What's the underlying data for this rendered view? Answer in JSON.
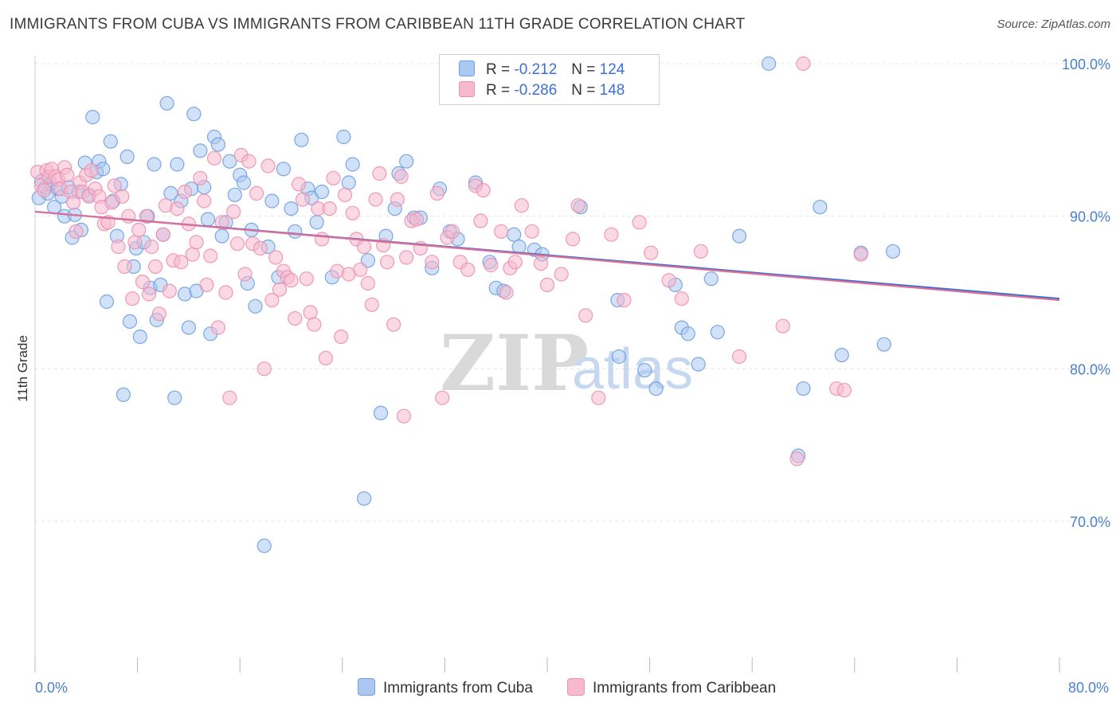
{
  "title": "IMMIGRANTS FROM CUBA VS IMMIGRANTS FROM CARIBBEAN 11TH GRADE CORRELATION CHART",
  "source": "Source: ZipAtlas.com",
  "watermark": {
    "zip": "ZIP",
    "atlas": "atlas"
  },
  "legend": {
    "rows": [
      {
        "r_label": "R =",
        "r_value": "-0.212",
        "n_label": "N =",
        "n_value": "124"
      },
      {
        "r_label": "R =",
        "r_value": "-0.286",
        "n_label": "N =",
        "n_value": "148"
      }
    ]
  },
  "chart_data": {
    "type": "scatter",
    "title": "IMMIGRANTS FROM CUBA VS IMMIGRANTS FROM CARIBBEAN 11TH GRADE CORRELATION CHART",
    "xlabel": "",
    "ylabel": "11th Grade",
    "xlim": [
      0,
      80
    ],
    "ylim": [
      61,
      102
    ],
    "x_tick_labels": [
      "0.0%",
      "80.0%"
    ],
    "y_ticks": [
      70,
      80,
      90,
      100
    ],
    "y_tick_labels": [
      "70.0%",
      "80.0%",
      "90.0%",
      "100.0%"
    ],
    "grid": true,
    "legend_position": "top-center",
    "colors": {
      "cuba_fill": "#aac8f2",
      "cuba_stroke": "#6f9ee0",
      "cuba_line": "#3a6fcf",
      "carib_fill": "#f6b9cd",
      "carib_stroke": "#ee8fae",
      "carib_line": "#e06f98"
    },
    "series": [
      {
        "name": "Immigrants from Cuba",
        "color": "#aac8f2",
        "trend": {
          "x": [
            0,
            80
          ],
          "y": [
            90.3,
            84.6
          ]
        },
        "points": [
          [
            0.3,
            91.2
          ],
          [
            0.5,
            92.3
          ],
          [
            0.8,
            91.9
          ],
          [
            1.0,
            91.5
          ],
          [
            1.2,
            92.1
          ],
          [
            1.5,
            90.6
          ],
          [
            1.8,
            91.8
          ],
          [
            2.1,
            91.3
          ],
          [
            2.3,
            90.0
          ],
          [
            2.6,
            91.9
          ],
          [
            2.9,
            88.6
          ],
          [
            3.1,
            90.1
          ],
          [
            3.4,
            91.6
          ],
          [
            3.6,
            89.1
          ],
          [
            3.9,
            93.5
          ],
          [
            4.2,
            91.4
          ],
          [
            4.5,
            96.5
          ],
          [
            4.8,
            92.9
          ],
          [
            5.0,
            93.6
          ],
          [
            5.3,
            93.1
          ],
          [
            5.6,
            84.4
          ],
          [
            5.9,
            94.9
          ],
          [
            6.1,
            91.0
          ],
          [
            6.4,
            88.7
          ],
          [
            6.7,
            92.1
          ],
          [
            6.9,
            78.3
          ],
          [
            7.2,
            93.9
          ],
          [
            7.4,
            83.1
          ],
          [
            7.7,
            86.7
          ],
          [
            7.9,
            87.9
          ],
          [
            8.2,
            82.1
          ],
          [
            8.5,
            88.3
          ],
          [
            8.8,
            90.0
          ],
          [
            9.0,
            85.3
          ],
          [
            9.3,
            93.4
          ],
          [
            9.5,
            83.2
          ],
          [
            9.8,
            85.5
          ],
          [
            10.0,
            88.8
          ],
          [
            10.3,
            97.4
          ],
          [
            10.6,
            91.5
          ],
          [
            10.9,
            78.1
          ],
          [
            11.1,
            93.4
          ],
          [
            11.4,
            91.0
          ],
          [
            11.7,
            84.9
          ],
          [
            12.0,
            82.7
          ],
          [
            12.2,
            91.8
          ],
          [
            12.4,
            96.7
          ],
          [
            12.6,
            85.1
          ],
          [
            12.9,
            94.3
          ],
          [
            13.2,
            91.9
          ],
          [
            13.5,
            89.8
          ],
          [
            13.7,
            82.3
          ],
          [
            14.0,
            95.2
          ],
          [
            14.3,
            94.7
          ],
          [
            14.6,
            88.7
          ],
          [
            14.9,
            89.6
          ],
          [
            15.2,
            93.6
          ],
          [
            15.6,
            91.4
          ],
          [
            16.0,
            92.7
          ],
          [
            16.3,
            92.2
          ],
          [
            16.6,
            85.6
          ],
          [
            16.9,
            89.1
          ],
          [
            17.2,
            84.1
          ],
          [
            17.9,
            68.4
          ],
          [
            18.2,
            88.0
          ],
          [
            18.5,
            91.0
          ],
          [
            19.0,
            86.0
          ],
          [
            19.4,
            93.1
          ],
          [
            20.0,
            90.5
          ],
          [
            20.3,
            89.0
          ],
          [
            20.8,
            95.0
          ],
          [
            21.3,
            91.8
          ],
          [
            21.6,
            91.2
          ],
          [
            22.0,
            89.6
          ],
          [
            22.4,
            91.6
          ],
          [
            23.2,
            86.0
          ],
          [
            24.1,
            95.2
          ],
          [
            24.5,
            92.2
          ],
          [
            24.8,
            93.4
          ],
          [
            25.7,
            71.5
          ],
          [
            26.0,
            87.1
          ],
          [
            27.0,
            77.1
          ],
          [
            27.4,
            88.7
          ],
          [
            28.1,
            90.5
          ],
          [
            28.4,
            92.8
          ],
          [
            29.0,
            93.6
          ],
          [
            29.6,
            89.9
          ],
          [
            30.1,
            89.9
          ],
          [
            31.0,
            86.6
          ],
          [
            31.6,
            91.8
          ],
          [
            32.4,
            89.0
          ],
          [
            33.0,
            88.5
          ],
          [
            34.4,
            92.2
          ],
          [
            35.5,
            87.0
          ],
          [
            36.0,
            85.3
          ],
          [
            36.6,
            85.1
          ],
          [
            37.4,
            88.8
          ],
          [
            37.8,
            88.0
          ],
          [
            39.0,
            87.8
          ],
          [
            39.6,
            87.5
          ],
          [
            42.6,
            90.6
          ],
          [
            45.5,
            84.5
          ],
          [
            45.6,
            80.8
          ],
          [
            47.6,
            79.9
          ],
          [
            48.5,
            78.7
          ],
          [
            50.0,
            85.5
          ],
          [
            50.5,
            82.7
          ],
          [
            51.0,
            82.3
          ],
          [
            51.8,
            80.3
          ],
          [
            52.8,
            85.9
          ],
          [
            53.3,
            82.4
          ],
          [
            55.0,
            88.7
          ],
          [
            57.3,
            100.0
          ],
          [
            59.6,
            74.3
          ],
          [
            60.0,
            78.7
          ],
          [
            61.3,
            90.6
          ],
          [
            63.0,
            80.9
          ],
          [
            64.5,
            87.6
          ],
          [
            66.3,
            81.6
          ],
          [
            67.0,
            87.7
          ]
        ]
      },
      {
        "name": "Immigrants from Caribbean",
        "color": "#f6b9cd",
        "trend": {
          "x": [
            0,
            80
          ],
          "y": [
            90.3,
            84.5
          ]
        },
        "points": [
          [
            0.2,
            92.9
          ],
          [
            0.5,
            92.0
          ],
          [
            0.7,
            91.7
          ],
          [
            0.9,
            93.0
          ],
          [
            1.1,
            92.6
          ],
          [
            1.3,
            93.1
          ],
          [
            1.6,
            92.6
          ],
          [
            1.8,
            92.4
          ],
          [
            2.0,
            91.8
          ],
          [
            2.3,
            93.2
          ],
          [
            2.5,
            92.7
          ],
          [
            2.8,
            91.6
          ],
          [
            3.0,
            90.9
          ],
          [
            3.2,
            89.0
          ],
          [
            3.5,
            92.2
          ],
          [
            3.7,
            91.6
          ],
          [
            4.0,
            92.7
          ],
          [
            4.2,
            91.3
          ],
          [
            4.4,
            93.0
          ],
          [
            4.7,
            91.8
          ],
          [
            5.0,
            91.3
          ],
          [
            5.2,
            90.6
          ],
          [
            5.4,
            89.5
          ],
          [
            5.7,
            89.6
          ],
          [
            6.0,
            90.9
          ],
          [
            6.2,
            92.0
          ],
          [
            6.5,
            88.0
          ],
          [
            6.8,
            91.3
          ],
          [
            7.0,
            86.7
          ],
          [
            7.3,
            90.0
          ],
          [
            7.6,
            84.6
          ],
          [
            7.8,
            88.3
          ],
          [
            8.1,
            89.1
          ],
          [
            8.4,
            85.7
          ],
          [
            8.7,
            90.0
          ],
          [
            8.9,
            84.9
          ],
          [
            9.1,
            88.0
          ],
          [
            9.4,
            86.7
          ],
          [
            9.7,
            83.6
          ],
          [
            10.0,
            88.8
          ],
          [
            10.2,
            90.7
          ],
          [
            10.5,
            85.1
          ],
          [
            10.8,
            87.1
          ],
          [
            11.1,
            90.5
          ],
          [
            11.4,
            87.0
          ],
          [
            11.7,
            91.6
          ],
          [
            12.0,
            89.5
          ],
          [
            12.3,
            87.5
          ],
          [
            12.6,
            88.3
          ],
          [
            12.9,
            92.5
          ],
          [
            13.2,
            91.0
          ],
          [
            13.4,
            85.5
          ],
          [
            13.7,
            87.4
          ],
          [
            14.0,
            93.8
          ],
          [
            14.3,
            82.7
          ],
          [
            14.6,
            89.6
          ],
          [
            14.9,
            85.0
          ],
          [
            15.2,
            78.1
          ],
          [
            15.5,
            90.3
          ],
          [
            15.8,
            88.2
          ],
          [
            16.1,
            94.0
          ],
          [
            16.4,
            86.2
          ],
          [
            16.7,
            93.6
          ],
          [
            17.0,
            88.2
          ],
          [
            17.3,
            91.5
          ],
          [
            17.6,
            87.9
          ],
          [
            17.9,
            80.0
          ],
          [
            18.2,
            93.3
          ],
          [
            18.5,
            84.5
          ],
          [
            18.8,
            87.3
          ],
          [
            19.1,
            85.2
          ],
          [
            19.4,
            86.4
          ],
          [
            19.7,
            86.0
          ],
          [
            20.0,
            85.8
          ],
          [
            20.3,
            83.3
          ],
          [
            20.6,
            92.1
          ],
          [
            20.9,
            91.1
          ],
          [
            21.2,
            85.9
          ],
          [
            21.5,
            83.7
          ],
          [
            21.8,
            82.9
          ],
          [
            22.1,
            90.5
          ],
          [
            22.4,
            88.5
          ],
          [
            22.7,
            80.7
          ],
          [
            23.0,
            90.5
          ],
          [
            23.3,
            92.5
          ],
          [
            23.6,
            86.4
          ],
          [
            23.9,
            82.1
          ],
          [
            24.2,
            91.4
          ],
          [
            24.5,
            86.2
          ],
          [
            24.8,
            90.2
          ],
          [
            25.1,
            88.5
          ],
          [
            25.4,
            86.5
          ],
          [
            25.7,
            88.0
          ],
          [
            26.0,
            85.6
          ],
          [
            26.3,
            84.2
          ],
          [
            26.6,
            91.1
          ],
          [
            26.9,
            92.8
          ],
          [
            27.2,
            88.1
          ],
          [
            27.5,
            87.0
          ],
          [
            28.0,
            82.9
          ],
          [
            28.3,
            91.1
          ],
          [
            28.6,
            92.6
          ],
          [
            28.8,
            76.9
          ],
          [
            29.0,
            87.3
          ],
          [
            29.4,
            89.7
          ],
          [
            29.8,
            89.8
          ],
          [
            30.1,
            87.9
          ],
          [
            31.0,
            87.0
          ],
          [
            31.4,
            91.5
          ],
          [
            31.8,
            78.1
          ],
          [
            32.2,
            88.6
          ],
          [
            32.6,
            89.0
          ],
          [
            33.2,
            87.0
          ],
          [
            33.8,
            86.5
          ],
          [
            34.4,
            92.0
          ],
          [
            34.8,
            89.7
          ],
          [
            35.0,
            91.7
          ],
          [
            35.6,
            86.8
          ],
          [
            36.4,
            89.0
          ],
          [
            36.8,
            85.0
          ],
          [
            37.1,
            86.6
          ],
          [
            37.5,
            87.0
          ],
          [
            38.0,
            90.7
          ],
          [
            38.8,
            89.0
          ],
          [
            39.5,
            86.9
          ],
          [
            40.0,
            85.5
          ],
          [
            41.1,
            86.2
          ],
          [
            42.0,
            88.5
          ],
          [
            42.4,
            90.7
          ],
          [
            43.0,
            83.5
          ],
          [
            44.0,
            78.1
          ],
          [
            45.0,
            88.8
          ],
          [
            46.0,
            84.5
          ],
          [
            47.2,
            89.6
          ],
          [
            48.1,
            87.6
          ],
          [
            49.5,
            85.8
          ],
          [
            50.5,
            84.6
          ],
          [
            52.0,
            87.7
          ],
          [
            55.0,
            80.8
          ],
          [
            58.4,
            82.8
          ],
          [
            59.5,
            74.1
          ],
          [
            60.0,
            100.0
          ],
          [
            62.6,
            78.7
          ],
          [
            63.2,
            78.6
          ],
          [
            64.5,
            87.5
          ]
        ]
      }
    ]
  },
  "bottom_legend": [
    {
      "label": "Immigrants from Cuba"
    },
    {
      "label": "Immigrants from Caribbean"
    }
  ]
}
